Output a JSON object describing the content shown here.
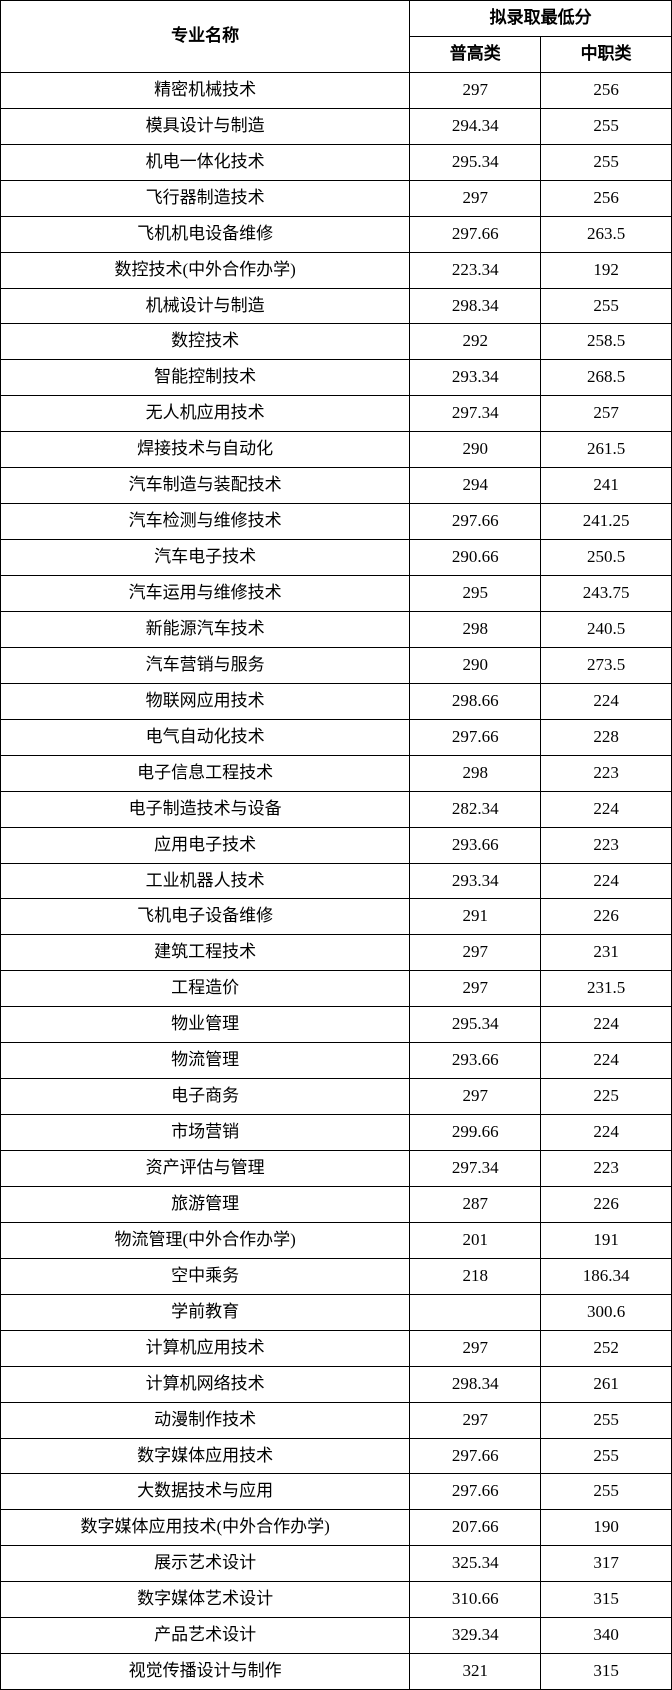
{
  "table": {
    "type": "table",
    "background_color": "#ffffff",
    "border_color": "#000000",
    "text_color": "#000000",
    "font_family": "SimSun",
    "header_fontsize": 17,
    "cell_fontsize": 17,
    "header_fontweight": "bold",
    "columns": {
      "major_header": "专业名称",
      "score_group_header": "拟录取最低分",
      "sub1": "普高类",
      "sub2": "中职类",
      "col_widths": [
        "61%",
        "19.5%",
        "19.5%"
      ]
    },
    "rows": [
      {
        "major": "精密机械技术",
        "s1": "297",
        "s2": "256"
      },
      {
        "major": "模具设计与制造",
        "s1": "294.34",
        "s2": "255"
      },
      {
        "major": "机电一体化技术",
        "s1": "295.34",
        "s2": "255"
      },
      {
        "major": "飞行器制造技术",
        "s1": "297",
        "s2": "256"
      },
      {
        "major": "飞机机电设备维修",
        "s1": "297.66",
        "s2": "263.5"
      },
      {
        "major": "数控技术(中外合作办学)",
        "s1": "223.34",
        "s2": "192"
      },
      {
        "major": "机械设计与制造",
        "s1": "298.34",
        "s2": "255"
      },
      {
        "major": "数控技术",
        "s1": "292",
        "s2": "258.5"
      },
      {
        "major": "智能控制技术",
        "s1": "293.34",
        "s2": "268.5"
      },
      {
        "major": "无人机应用技术",
        "s1": "297.34",
        "s2": "257"
      },
      {
        "major": "焊接技术与自动化",
        "s1": "290",
        "s2": "261.5"
      },
      {
        "major": "汽车制造与装配技术",
        "s1": "294",
        "s2": "241"
      },
      {
        "major": "汽车检测与维修技术",
        "s1": "297.66",
        "s2": "241.25"
      },
      {
        "major": "汽车电子技术",
        "s1": "290.66",
        "s2": "250.5"
      },
      {
        "major": "汽车运用与维修技术",
        "s1": "295",
        "s2": "243.75"
      },
      {
        "major": "新能源汽车技术",
        "s1": "298",
        "s2": "240.5"
      },
      {
        "major": "汽车营销与服务",
        "s1": "290",
        "s2": "273.5"
      },
      {
        "major": "物联网应用技术",
        "s1": "298.66",
        "s2": "224"
      },
      {
        "major": "电气自动化技术",
        "s1": "297.66",
        "s2": "228"
      },
      {
        "major": "电子信息工程技术",
        "s1": "298",
        "s2": "223"
      },
      {
        "major": "电子制造技术与设备",
        "s1": "282.34",
        "s2": "224"
      },
      {
        "major": "应用电子技术",
        "s1": "293.66",
        "s2": "223"
      },
      {
        "major": "工业机器人技术",
        "s1": "293.34",
        "s2": "224"
      },
      {
        "major": "飞机电子设备维修",
        "s1": "291",
        "s2": "226"
      },
      {
        "major": "建筑工程技术",
        "s1": "297",
        "s2": "231"
      },
      {
        "major": "工程造价",
        "s1": "297",
        "s2": "231.5"
      },
      {
        "major": "物业管理",
        "s1": "295.34",
        "s2": "224"
      },
      {
        "major": "物流管理",
        "s1": "293.66",
        "s2": "224"
      },
      {
        "major": "电子商务",
        "s1": "297",
        "s2": "225"
      },
      {
        "major": "市场营销",
        "s1": "299.66",
        "s2": "224"
      },
      {
        "major": "资产评估与管理",
        "s1": "297.34",
        "s2": "223"
      },
      {
        "major": "旅游管理",
        "s1": "287",
        "s2": "226"
      },
      {
        "major": "物流管理(中外合作办学)",
        "s1": "201",
        "s2": "191"
      },
      {
        "major": "空中乘务",
        "s1": "218",
        "s2": "186.34"
      },
      {
        "major": "学前教育",
        "s1": "",
        "s2": "300.6"
      },
      {
        "major": "计算机应用技术",
        "s1": "297",
        "s2": "252"
      },
      {
        "major": "计算机网络技术",
        "s1": "298.34",
        "s2": "261"
      },
      {
        "major": "动漫制作技术",
        "s1": "297",
        "s2": "255"
      },
      {
        "major": "数字媒体应用技术",
        "s1": "297.66",
        "s2": "255"
      },
      {
        "major": "大数据技术与应用",
        "s1": "297.66",
        "s2": "255"
      },
      {
        "major": "数字媒体应用技术(中外合作办学)",
        "s1": "207.66",
        "s2": "190"
      },
      {
        "major": "展示艺术设计",
        "s1": "325.34",
        "s2": "317"
      },
      {
        "major": "数字媒体艺术设计",
        "s1": "310.66",
        "s2": "315"
      },
      {
        "major": "产品艺术设计",
        "s1": "329.34",
        "s2": "340"
      },
      {
        "major": "视觉传播设计与制作",
        "s1": "321",
        "s2": "315"
      }
    ]
  }
}
